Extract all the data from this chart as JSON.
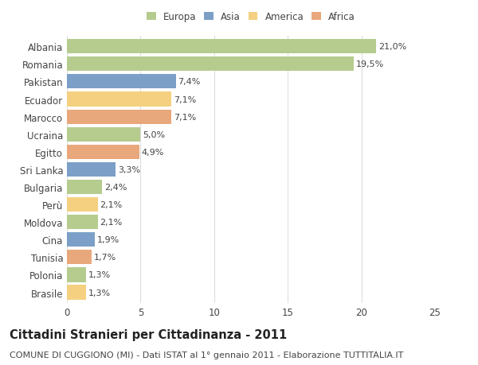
{
  "categories": [
    "Albania",
    "Romania",
    "Pakistan",
    "Ecuador",
    "Marocco",
    "Ucraina",
    "Egitto",
    "Sri Lanka",
    "Bulgaria",
    "Perù",
    "Moldova",
    "Cina",
    "Tunisia",
    "Polonia",
    "Brasile"
  ],
  "values": [
    21.0,
    19.5,
    7.4,
    7.1,
    7.1,
    5.0,
    4.9,
    3.3,
    2.4,
    2.1,
    2.1,
    1.9,
    1.7,
    1.3,
    1.3
  ],
  "labels": [
    "21,0%",
    "19,5%",
    "7,4%",
    "7,1%",
    "7,1%",
    "5,0%",
    "4,9%",
    "3,3%",
    "2,4%",
    "2,1%",
    "2,1%",
    "1,9%",
    "1,7%",
    "1,3%",
    "1,3%"
  ],
  "continents": [
    "Europa",
    "Europa",
    "Asia",
    "America",
    "Africa",
    "Europa",
    "Africa",
    "Asia",
    "Europa",
    "America",
    "Europa",
    "Asia",
    "Africa",
    "Europa",
    "America"
  ],
  "colors": {
    "Europa": "#b5cc8e",
    "Asia": "#7b9fc7",
    "America": "#f5d080",
    "Africa": "#e8a87c"
  },
  "title": "Cittadini Stranieri per Cittadinanza - 2011",
  "subtitle": "COMUNE DI CUGGIONO (MI) - Dati ISTAT al 1° gennaio 2011 - Elaborazione TUTTITALIA.IT",
  "xlim": [
    0,
    25
  ],
  "xticks": [
    0,
    5,
    10,
    15,
    20,
    25
  ],
  "background_color": "#ffffff",
  "grid_color": "#dddddd",
  "bar_height": 0.82,
  "title_fontsize": 10.5,
  "subtitle_fontsize": 8,
  "tick_fontsize": 8.5,
  "label_fontsize": 8,
  "legend_fontsize": 8.5
}
